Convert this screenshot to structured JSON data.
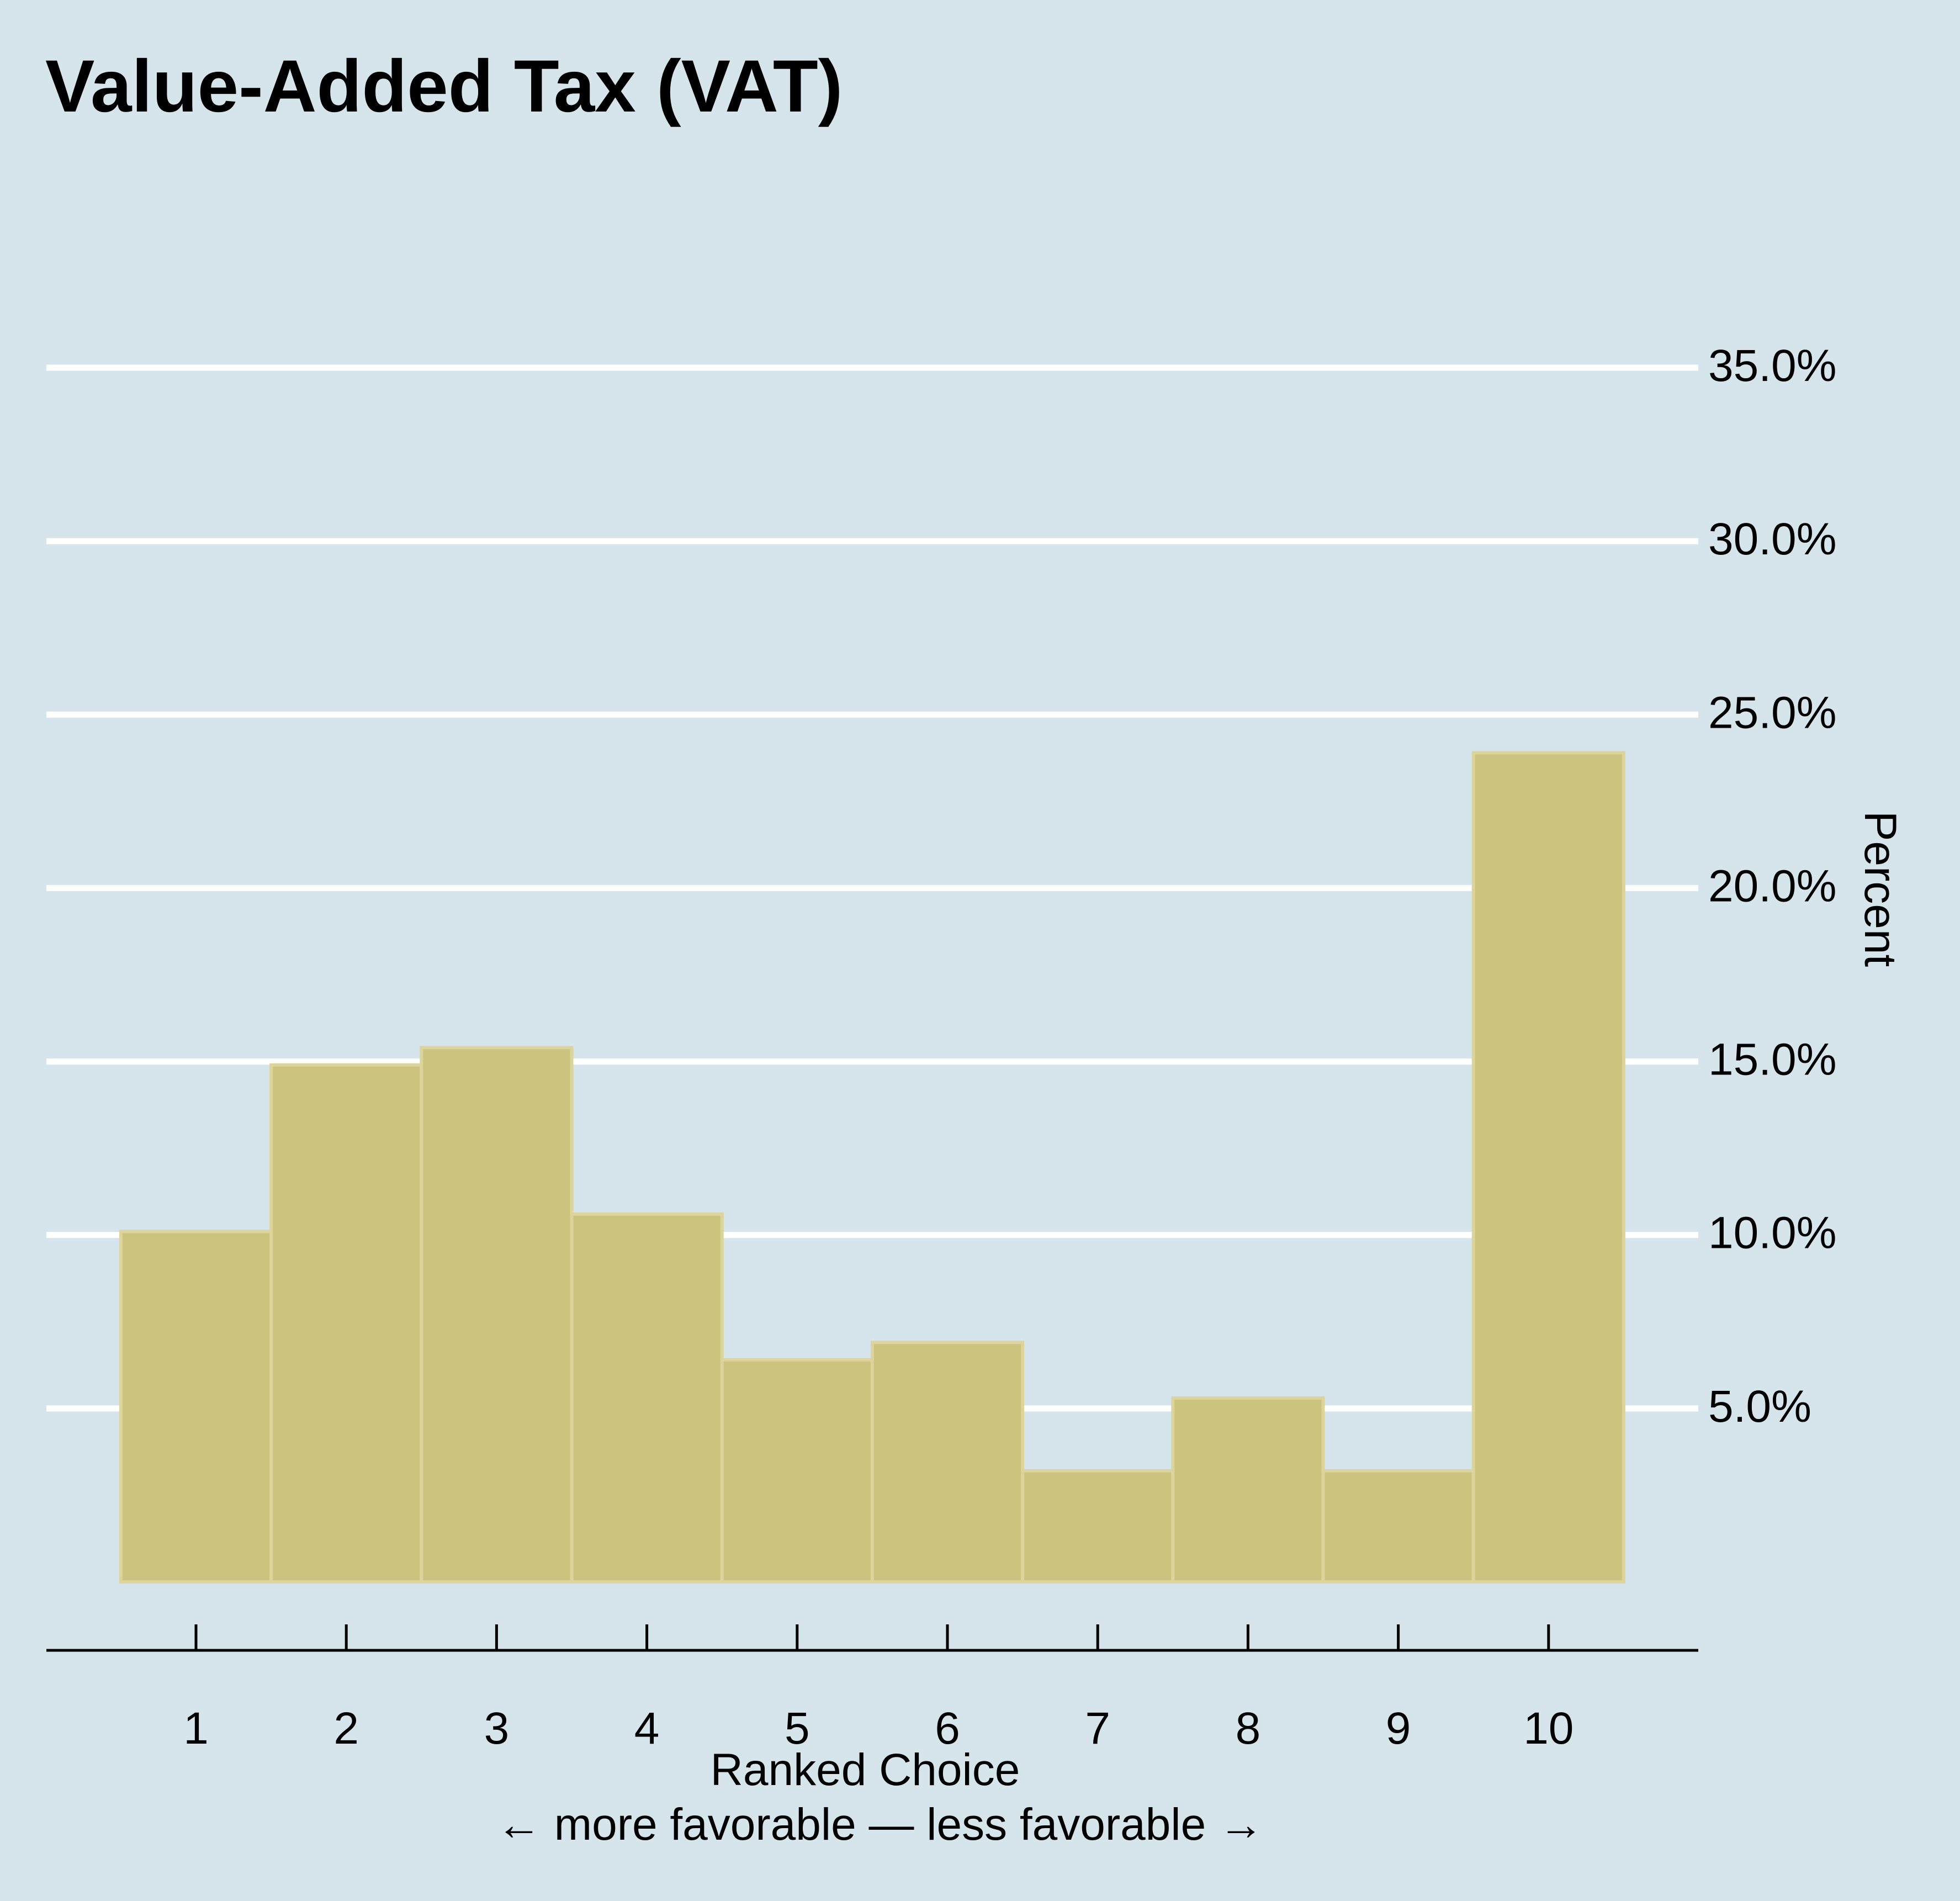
{
  "chart_data": {
    "type": "bar",
    "title": "Value-Added Tax (VAT)",
    "categories": [
      "1",
      "2",
      "3",
      "4",
      "5",
      "6",
      "7",
      "8",
      "9",
      "10"
    ],
    "values": [
      10.1,
      14.9,
      15.4,
      10.6,
      6.4,
      6.9,
      3.2,
      5.3,
      3.2,
      23.9
    ],
    "ylabel": "Percent",
    "xlabel": "Ranked Choice",
    "xlabel_sub": "← more favorable — less favorable →",
    "y_ticks": [
      5,
      10,
      15,
      20,
      25,
      30,
      35
    ],
    "y_tick_labels": [
      "5.0%",
      "10.0%",
      "15.0%",
      "20.0%",
      "25.0%",
      "30.0%",
      "35.0%"
    ],
    "ylim": [
      0,
      35
    ],
    "y_axis_position": "right",
    "grid": true,
    "colors": {
      "background": "#d6e4eb",
      "bar_fill": "#cbc47e",
      "bar_stroke": "#dcd49c",
      "grid": "#ffffff",
      "axis": "#000000",
      "text": "#000000"
    }
  }
}
